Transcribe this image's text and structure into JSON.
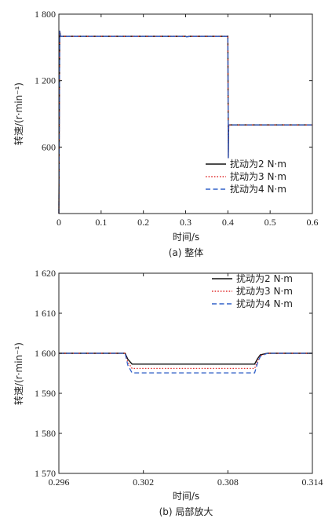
{
  "chart_data": [
    {
      "type": "line",
      "caption": "(a) 整体",
      "xlabel": "时间/s",
      "ylabel": "转速/(r·min⁻¹)",
      "xlim": [
        0,
        0.6
      ],
      "ylim": [
        0,
        1800
      ],
      "xticks": [
        0,
        0.1,
        0.2,
        0.3,
        0.4,
        0.5,
        0.6
      ],
      "xtick_labels": [
        "0",
        "0.1",
        "0.2",
        "0.3",
        "0.4",
        "0.5",
        "0.6"
      ],
      "yticks": [
        600,
        1200,
        1800
      ],
      "ytick_labels": [
        "600",
        "1 200",
        "1 800"
      ],
      "legend_position": "bottom-right",
      "series": [
        {
          "name": "扰动为2 N·m",
          "color": "#111111",
          "dash": "solid",
          "x": [
            0,
            0.002,
            0.004,
            0.006,
            0.3,
            0.302,
            0.31,
            0.4,
            0.401,
            0.402,
            0.405,
            0.41,
            0.6
          ],
          "y": [
            0,
            1650,
            1600,
            1600,
            1600,
            1597,
            1600,
            1600,
            500,
            800,
            800,
            800,
            800
          ]
        },
        {
          "name": "扰动为3 N·m",
          "color": "#e03030",
          "dash": "dotted",
          "x": [
            0,
            0.002,
            0.004,
            0.006,
            0.3,
            0.302,
            0.31,
            0.4,
            0.401,
            0.402,
            0.405,
            0.41,
            0.6
          ],
          "y": [
            0,
            1650,
            1600,
            1600,
            1600,
            1596,
            1600,
            1600,
            500,
            800,
            800,
            800,
            800
          ]
        },
        {
          "name": "扰动为4 N·m",
          "color": "#3060c8",
          "dash": "dashed",
          "x": [
            0,
            0.002,
            0.004,
            0.006,
            0.3,
            0.302,
            0.31,
            0.4,
            0.401,
            0.402,
            0.405,
            0.41,
            0.6
          ],
          "y": [
            0,
            1650,
            1600,
            1600,
            1600,
            1595,
            1600,
            1600,
            500,
            800,
            800,
            800,
            800
          ]
        }
      ]
    },
    {
      "type": "line",
      "caption": "(b) 局部放大",
      "xlabel": "时间/s",
      "ylabel": "转速/(r·min⁻¹)",
      "xlim": [
        0.296,
        0.314
      ],
      "ylim": [
        1570,
        1620
      ],
      "xticks": [
        0.296,
        0.302,
        0.308,
        0.314
      ],
      "xtick_labels": [
        "0.296",
        "0.302",
        "0.308",
        "0.314"
      ],
      "yticks": [
        1570,
        1580,
        1590,
        1600,
        1610,
        1620
      ],
      "ytick_labels": [
        "1 570",
        "1 580",
        "1 590",
        "1 600",
        "1 610",
        "1 620"
      ],
      "legend_position": "top-right",
      "series": [
        {
          "name": "扰动为2 N·m",
          "color": "#111111",
          "dash": "solid",
          "x": [
            0.296,
            0.3007,
            0.3009,
            0.3012,
            0.3099,
            0.3101,
            0.3103,
            0.3108,
            0.314
          ],
          "y": [
            1600,
            1600,
            1598.5,
            1597.3,
            1597.3,
            1598.6,
            1599.6,
            1600,
            1600
          ]
        },
        {
          "name": "扰动为3 N·m",
          "color": "#e03030",
          "dash": "dotted",
          "x": [
            0.296,
            0.3007,
            0.3009,
            0.3012,
            0.3099,
            0.3101,
            0.3103,
            0.3108,
            0.314
          ],
          "y": [
            1600,
            1600,
            1597.8,
            1596.2,
            1596.2,
            1598,
            1599.4,
            1600,
            1600
          ]
        },
        {
          "name": "扰动为4 N·m",
          "color": "#3060c8",
          "dash": "dashed",
          "x": [
            0.296,
            0.3007,
            0.3009,
            0.3012,
            0.3099,
            0.3101,
            0.3103,
            0.3108,
            0.314
          ],
          "y": [
            1600,
            1600,
            1597,
            1595.1,
            1595.1,
            1597.5,
            1599.2,
            1600,
            1600
          ]
        }
      ]
    }
  ]
}
